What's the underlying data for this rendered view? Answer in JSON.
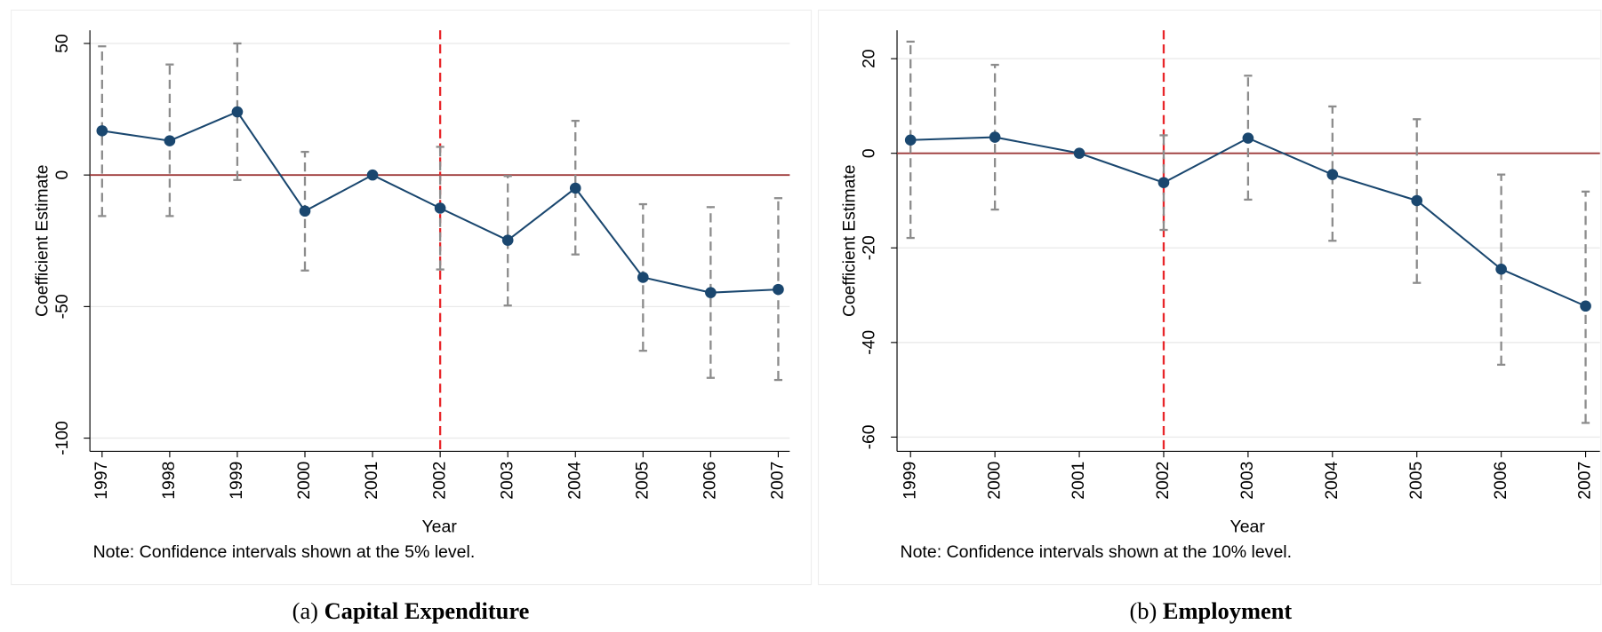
{
  "chart_data": [
    {
      "type": "line",
      "caption_label": "(a)",
      "caption": "Capital Expenditure",
      "x_label": "Year",
      "y_label": "Coefficient Estimate",
      "note": "Note: Confidence intervals shown at the 5% level.",
      "x": [
        1997,
        1998,
        1999,
        2000,
        2001,
        2002,
        2003,
        2004,
        2005,
        2006,
        2007
      ],
      "values": [
        16.8,
        13,
        24,
        -13.7,
        0,
        -12.6,
        -24.8,
        -5,
        -38.9,
        -44.7,
        -43.5
      ],
      "ci_low": [
        -15.6,
        -15.6,
        -1.9,
        -36.3,
        null,
        -35.9,
        -49.6,
        -30.2,
        -66.8,
        -77.1,
        -77.9
      ],
      "ci_high": [
        48.9,
        42,
        50,
        8.8,
        null,
        10.7,
        -0.4,
        20.6,
        -11.1,
        -12.2,
        -8.8
      ],
      "xlim": [
        1996.82,
        2007.17
      ],
      "xticks": [
        1997,
        1998,
        1999,
        2000,
        2001,
        2002,
        2003,
        2004,
        2005,
        2006,
        2007
      ],
      "ylim": [
        -105,
        55
      ],
      "yticks": [
        -100,
        -50,
        0,
        50
      ],
      "hline": 0,
      "vline": 2002,
      "grid": true,
      "color": "#1a476f",
      "ci_color": "#8c8c8c",
      "hline_color": "#9e3a3a",
      "vline_color": "#e8262a"
    },
    {
      "type": "line",
      "caption_label": "(b)",
      "caption": "Employment",
      "x_label": "Year",
      "y_label": "Coefficient Estimate",
      "note": "Note: Confidence intervals shown at the 10% level.",
      "x": [
        1999,
        2000,
        2001,
        2002,
        2003,
        2004,
        2005,
        2006,
        2007
      ],
      "values": [
        2.8,
        3.4,
        0,
        -6.2,
        3.2,
        -4.5,
        -10,
        -24.5,
        -32.3
      ],
      "ci_low": [
        -17.9,
        -11.9,
        null,
        -16.2,
        -9.8,
        -18.5,
        -27.4,
        -44.7,
        -57
      ],
      "ci_high": [
        23.6,
        18.7,
        null,
        3.8,
        16.4,
        9.9,
        7.2,
        -4.5,
        -8.1
      ],
      "xlim": [
        1998.84,
        2007.17
      ],
      "xticks": [
        1999,
        2000,
        2001,
        2002,
        2003,
        2004,
        2005,
        2006,
        2007
      ],
      "ylim": [
        -63,
        26
      ],
      "yticks": [
        -60,
        -40,
        -20,
        0,
        20
      ],
      "hline": 0,
      "vline": 2002,
      "grid": true,
      "color": "#1a476f",
      "ci_color": "#8c8c8c",
      "hline_color": "#9e3a3a",
      "vline_color": "#e8262a"
    }
  ]
}
